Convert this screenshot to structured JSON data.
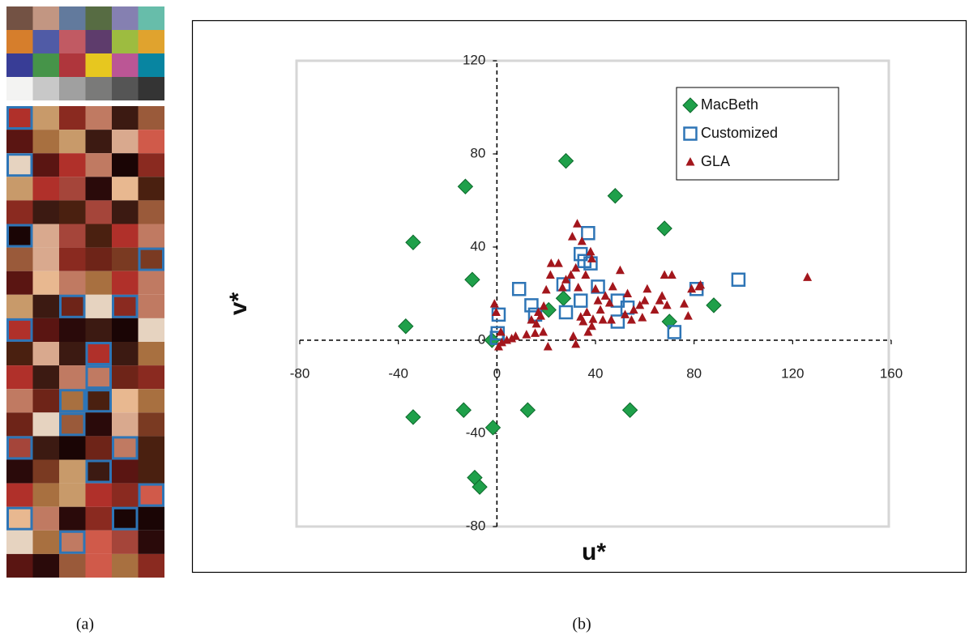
{
  "captions": [
    "(a)",
    "(b)"
  ],
  "chart_data": {
    "type": "scatter",
    "x_label": "u*",
    "y_label": "v*",
    "xlim": [
      -80,
      160
    ],
    "ylim": [
      -80,
      120
    ],
    "xticks": [
      -80,
      -40,
      0,
      40,
      80,
      120,
      160
    ],
    "yticks": [
      -80,
      -40,
      0,
      40,
      80,
      120
    ],
    "legend": "upper right",
    "series": [
      {
        "name": "MacBeth",
        "color": "#1fa04a",
        "marker": "diamond",
        "x": [
          28,
          -12.8,
          48,
          68,
          -34,
          -10,
          21,
          70,
          88,
          -37,
          -2,
          -34,
          -13.5,
          12.5,
          54,
          -1.6,
          -9,
          -7,
          27
        ],
        "y": [
          77,
          66,
          62,
          48,
          42,
          26,
          13,
          8,
          15,
          6,
          0,
          -33,
          -30,
          -30,
          -30,
          -37.5,
          -59,
          -63,
          18
        ]
      },
      {
        "name": "Customized",
        "color": "#2e75b6",
        "marker": "square",
        "x": [
          37,
          34,
          35.5,
          38,
          27,
          9,
          0.7,
          14,
          15.5,
          28,
          34,
          41,
          49,
          49,
          53,
          72,
          81,
          98,
          0,
          0.3
        ],
        "y": [
          46,
          37,
          34,
          33,
          24,
          22,
          11,
          15,
          11,
          12,
          17,
          23,
          17,
          8,
          14,
          3.5,
          22,
          26,
          1,
          3
        ]
      },
      {
        "name": "GLA",
        "color": "#a3161c",
        "marker": "triangle",
        "x": [
          126,
          82,
          79,
          71,
          68,
          66,
          69,
          67,
          61,
          60,
          58,
          55.5,
          53,
          52,
          50,
          47,
          45.7,
          44,
          42,
          41,
          40,
          39,
          38.5,
          37,
          36.5,
          35,
          34,
          32.6,
          30.6,
          34.5,
          38,
          38.5,
          32,
          30,
          28,
          26.6,
          25,
          22,
          21.7,
          20,
          19,
          17.8,
          16.8,
          16,
          15.5,
          20.7,
          18.8,
          14,
          12,
          7.6,
          6,
          4,
          2,
          0.7,
          -1,
          -0.3,
          1.6,
          32,
          31,
          43,
          54.6,
          64,
          33,
          36,
          46.4,
          59,
          76,
          77.6,
          82.6
        ],
        "y": [
          27,
          23,
          22,
          28,
          28,
          17,
          15,
          19,
          22,
          17,
          15,
          13,
          20,
          11,
          30,
          23,
          16,
          19,
          13,
          17,
          22,
          9,
          6,
          3.5,
          12,
          8,
          10,
          50,
          44.5,
          42.5,
          38,
          35,
          31,
          28,
          26,
          22.6,
          33,
          33,
          28,
          21.6,
          14.6,
          10.4,
          12,
          7,
          3,
          -2.8,
          3.5,
          8.7,
          2.4,
          1.7,
          0.7,
          0,
          -1,
          -2.8,
          15.6,
          12,
          3.5,
          -1.7,
          1.7,
          8.7,
          8.7,
          13,
          22.6,
          28,
          8.7,
          9.7,
          15.6,
          10.4,
          23.7
        ]
      }
    ]
  }
}
